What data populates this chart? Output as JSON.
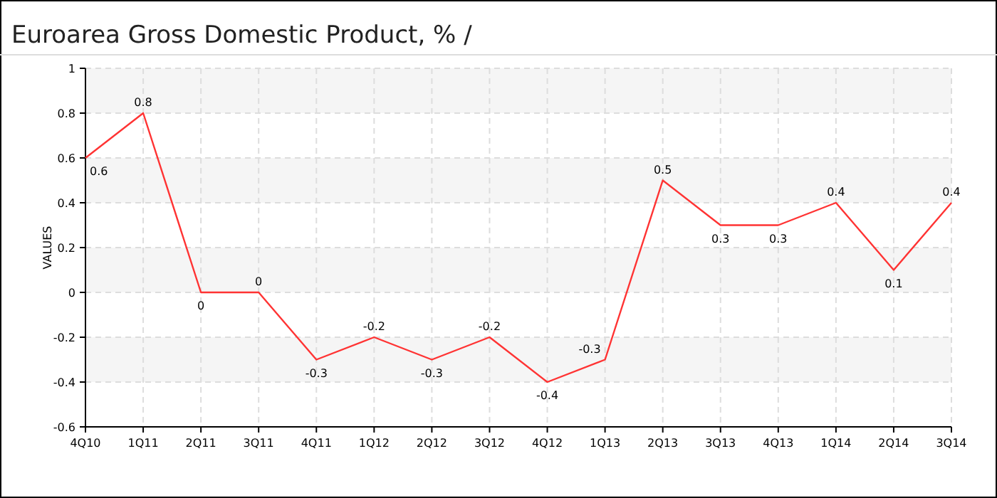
{
  "chart_data": {
    "type": "line",
    "title": "Euroarea Gross Domestic Product, %  /",
    "ylabel": "VALUES",
    "categories": [
      "4Q10",
      "1Q11",
      "2Q11",
      "3Q11",
      "4Q11",
      "1Q12",
      "2Q12",
      "3Q12",
      "4Q12",
      "1Q13",
      "2Q13",
      "3Q13",
      "4Q13",
      "1Q14",
      "2Q14",
      "3Q14"
    ],
    "series": [
      {
        "color": "#ff3333",
        "values": [
          0.6,
          0.8,
          0,
          0,
          -0.3,
          -0.2,
          -0.3,
          -0.2,
          -0.4,
          -0.3,
          0.5,
          0.3,
          0.3,
          0.4,
          0.1,
          0.4
        ]
      }
    ],
    "ylim": [
      -0.6,
      1
    ],
    "yticks": [
      -0.6,
      -0.4,
      -0.2,
      0,
      0.2,
      0.4,
      0.6,
      0.8,
      1
    ],
    "grid": true,
    "data_labels": true,
    "marker": "none",
    "line_style": "solid"
  }
}
